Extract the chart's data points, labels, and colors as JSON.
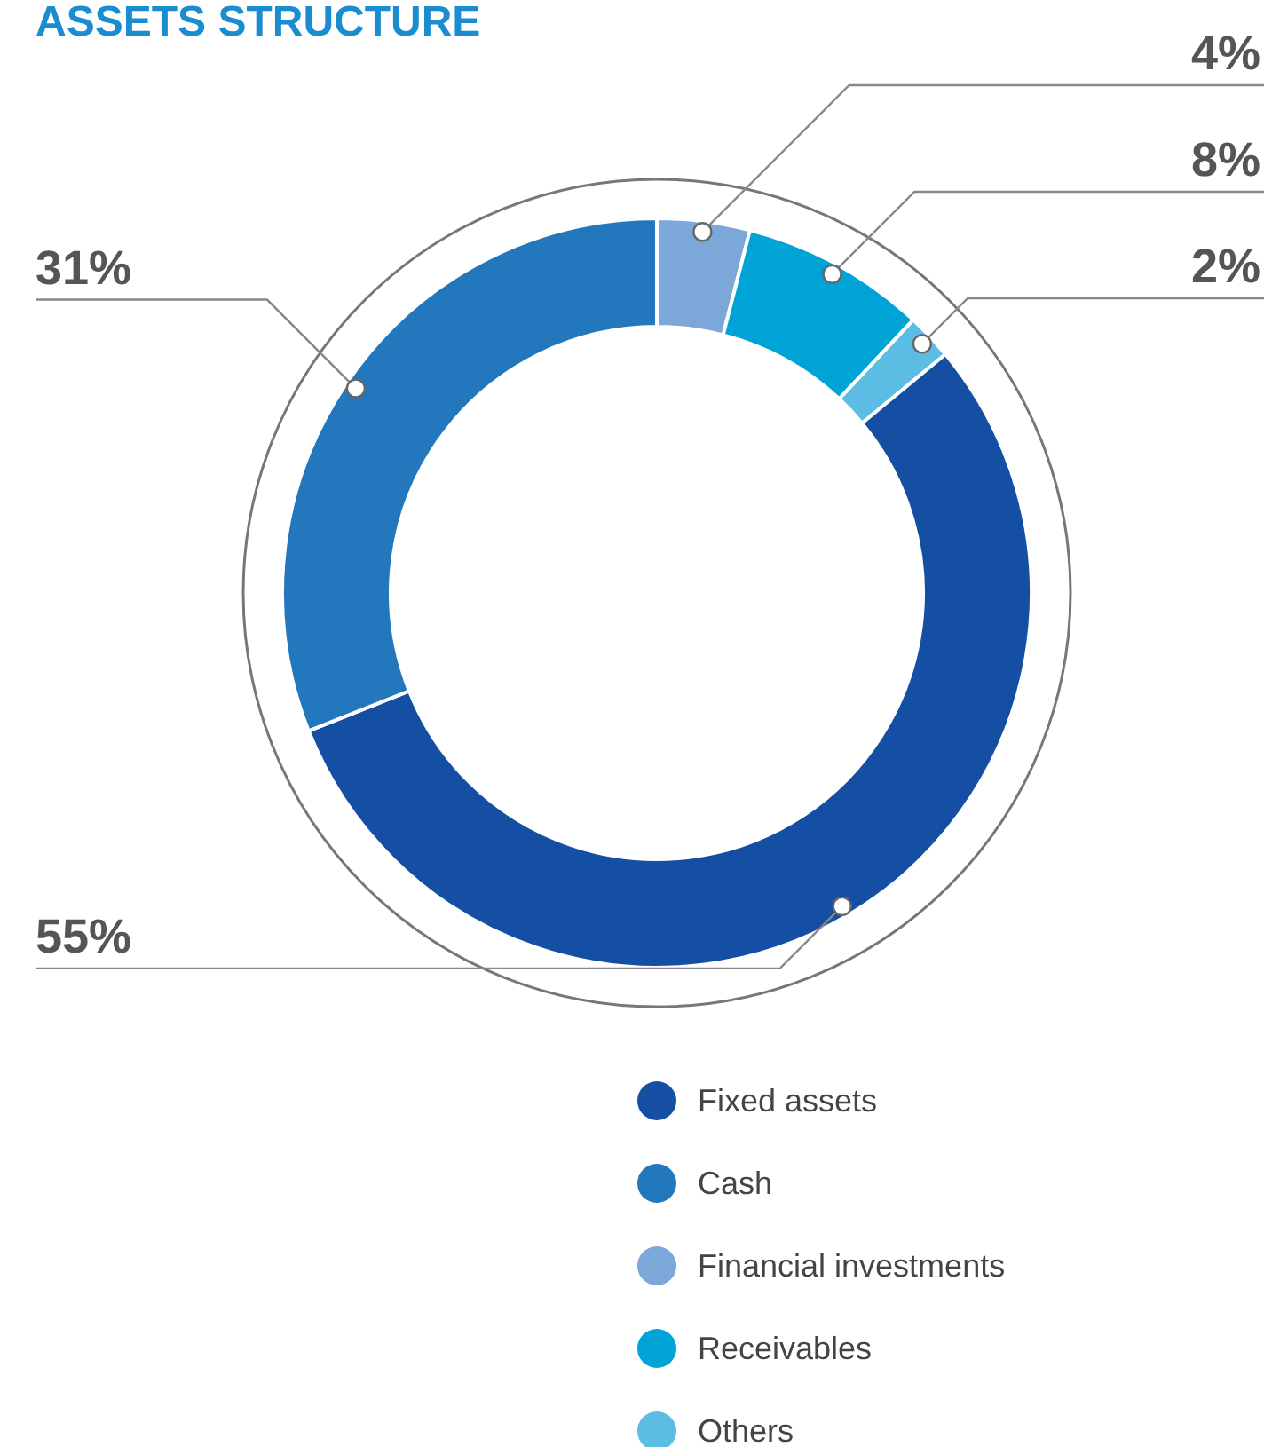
{
  "chart_data": {
    "type": "donut",
    "title": "ASSETS STRUCTURE",
    "categories": [
      "Financial investments",
      "Receivables",
      "Others",
      "Fixed assets",
      "Cash"
    ],
    "values": [
      4,
      8,
      2,
      55,
      31
    ],
    "colors": [
      "#7ba7d9",
      "#00a3d6",
      "#5bbde3",
      "#154fa3",
      "#2277bd"
    ],
    "value_labels": [
      "4%",
      "8%",
      "2%",
      "55%",
      "31%"
    ],
    "legend": "bottom"
  }
}
